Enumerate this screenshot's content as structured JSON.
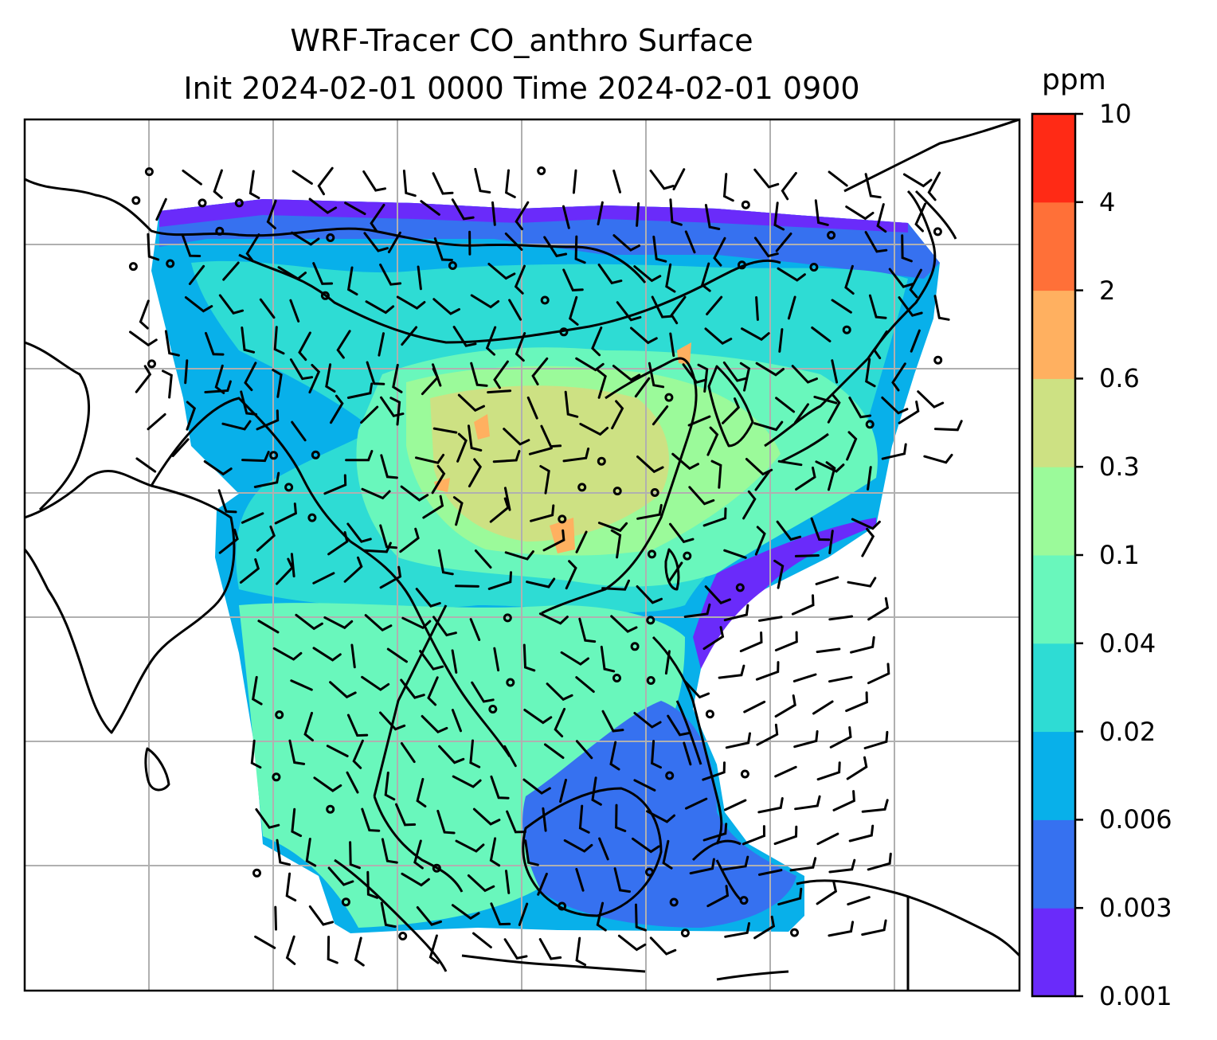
{
  "title": {
    "line1": "WRF-Tracer CO_anthro Surface",
    "line2": "Init 2024-02-01 0000 Time 2024-02-01 0900"
  },
  "colorbar": {
    "unit": "ppm",
    "levels": [
      "0.001",
      "0.003",
      "0.006",
      "0.02",
      "0.04",
      "0.1",
      "0.3",
      "0.6",
      "2",
      "4",
      "10"
    ],
    "colors": [
      "#6a2bfa",
      "#3671f0",
      "#08b0ea",
      "#2edcd4",
      "#69f7bc",
      "#9bfa9a",
      "#cde183",
      "#ffb060",
      "#ff7038",
      "#ff2a15"
    ]
  },
  "map": {
    "region": "Asia / Maritime Continent",
    "field": "CO_anthro",
    "gridlines": true,
    "overlay": "wind barbs and calm-wind circles"
  }
}
